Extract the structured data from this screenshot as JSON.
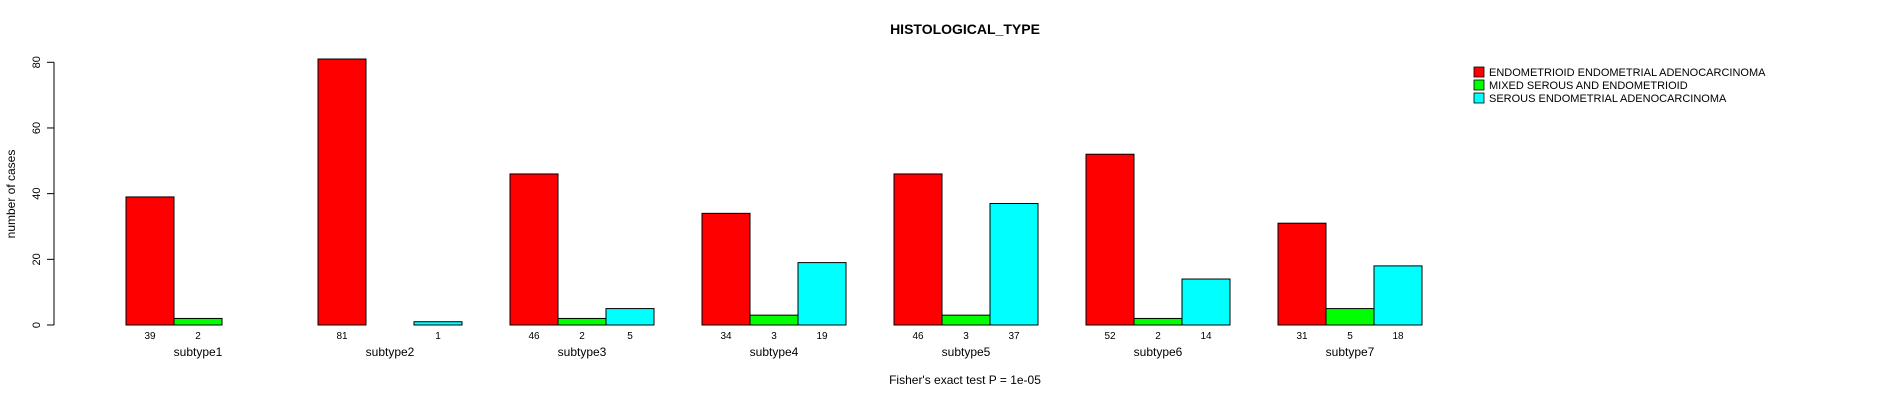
{
  "chart_data": {
    "type": "bar",
    "title": "HISTOLOGICAL_TYPE",
    "xlabel": "Fisher's exact test P = 1e-05",
    "ylabel": "number of cases",
    "ylim": [
      0,
      81
    ],
    "yticks": [
      0,
      20,
      40,
      60,
      80
    ],
    "grid": false,
    "legend_position": "top-right",
    "categories": [
      "subtype1",
      "subtype2",
      "subtype3",
      "subtype4",
      "subtype5",
      "subtype6",
      "subtype7"
    ],
    "series": [
      {
        "name": "ENDOMETRIOID ENDOMETRIAL ADENOCARCINOMA",
        "color": "#ff0000",
        "values": [
          39,
          81,
          46,
          34,
          46,
          52,
          31
        ]
      },
      {
        "name": "MIXED SEROUS AND ENDOMETRIOID",
        "color": "#00ff00",
        "values": [
          2,
          0,
          2,
          3,
          3,
          2,
          5
        ]
      },
      {
        "name": "SEROUS ENDOMETRIAL ADENOCARCINOMA",
        "color": "#00ffff",
        "values": [
          0,
          1,
          5,
          19,
          37,
          14,
          18
        ]
      }
    ],
    "bar_labels": [
      [
        "39",
        "2",
        ""
      ],
      [
        "81",
        "",
        "1"
      ],
      [
        "46",
        "2",
        "5"
      ],
      [
        "34",
        "3",
        "19"
      ],
      [
        "46",
        "3",
        "37"
      ],
      [
        "52",
        "2",
        "14"
      ],
      [
        "31",
        "5",
        "18"
      ]
    ]
  }
}
